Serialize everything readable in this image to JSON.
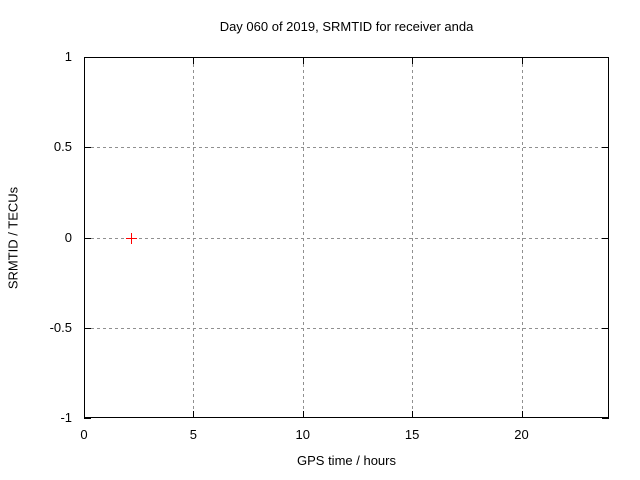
{
  "chart_data": {
    "type": "scatter",
    "title": "Day 060 of 2019, SRMTID for receiver anda",
    "xlabel": "GPS time / hours",
    "ylabel": "SRMTID / TECUs",
    "xlim": [
      0,
      24
    ],
    "ylim": [
      -1,
      1
    ],
    "grid": true,
    "legend": "none",
    "x_ticks": [
      {
        "value": 0,
        "label": "0"
      },
      {
        "value": 5,
        "label": "5"
      },
      {
        "value": 10,
        "label": "10"
      },
      {
        "value": 15,
        "label": "15"
      },
      {
        "value": 20,
        "label": "20"
      }
    ],
    "y_ticks": [
      {
        "value": 1,
        "label": "1"
      },
      {
        "value": 0.5,
        "label": "0.5"
      },
      {
        "value": 0,
        "label": "0"
      },
      {
        "value": -0.5,
        "label": "-0.5"
      },
      {
        "value": -1,
        "label": "-1"
      }
    ],
    "series": [
      {
        "name": "SRMTID",
        "marker": "plus",
        "color": "#ff0000",
        "points": [
          {
            "x": 2.13,
            "y": 0
          }
        ]
      }
    ]
  },
  "colors": {
    "background": "#ffffff",
    "axis": "#000000",
    "grid": "#909090",
    "text": "#000000",
    "marker": "#ff0000"
  }
}
